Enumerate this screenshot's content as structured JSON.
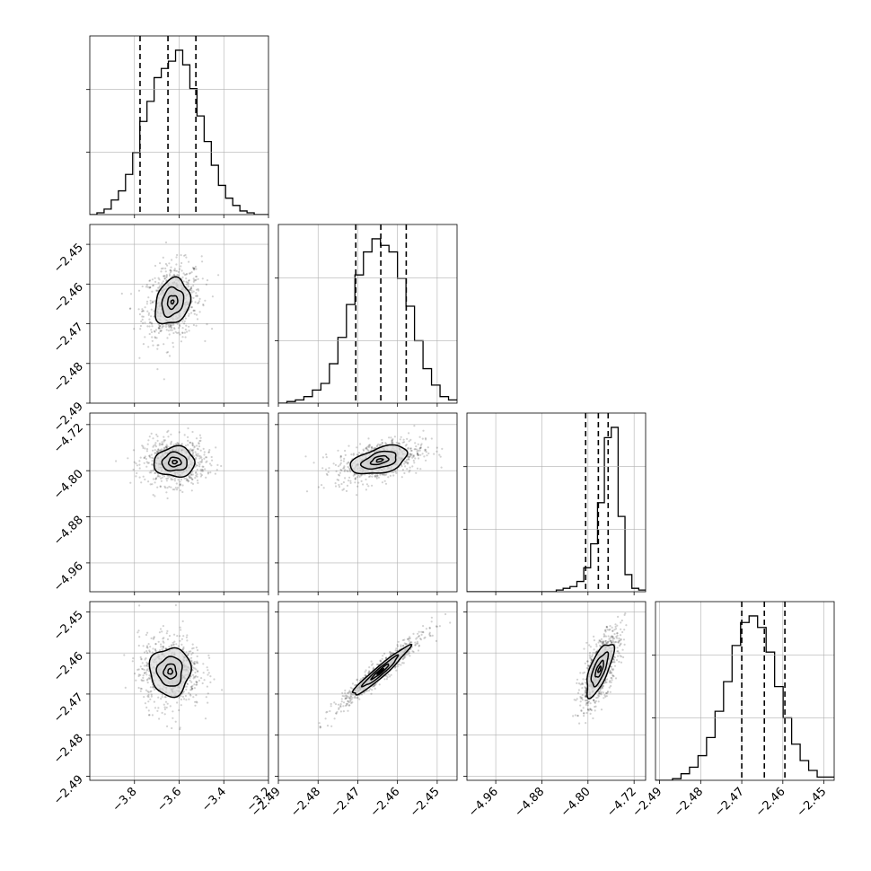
{
  "chart_data": {
    "type": "corner",
    "parameters": [
      "",
      "",
      "",
      ""
    ],
    "axes": [
      {
        "range": [
          -4.0,
          -3.2
        ],
        "ticks": [
          -3.8,
          -3.6,
          -3.4,
          -3.2
        ],
        "labels": [
          "−3.8",
          "−3.6",
          "−3.4",
          "−3.2"
        ]
      },
      {
        "range": [
          -2.49,
          -2.445
        ],
        "ticks": [
          -2.49,
          -2.48,
          -2.47,
          -2.46,
          -2.45
        ],
        "labels": [
          "−2.49",
          "−2.48",
          "−2.47",
          "−2.46",
          "−2.45"
        ]
      },
      {
        "range": [
          -5.01,
          -4.7
        ],
        "ticks": [
          -4.96,
          -4.88,
          -4.8,
          -4.72
        ],
        "labels": [
          "−4.96",
          "−4.88",
          "−4.80",
          "−4.72"
        ]
      },
      {
        "range": [
          -2.491,
          -2.4475
        ],
        "ticks": [
          -2.49,
          -2.48,
          -2.47,
          -2.46,
          -2.45
        ],
        "labels": [
          "−2.49",
          "−2.48",
          "−2.47",
          "−2.46",
          "−2.45"
        ]
      }
    ],
    "histograms": [
      {
        "edges_min": -4.0,
        "edges_max": -3.2,
        "counts": [
          0,
          1,
          3,
          8,
          13,
          22,
          34,
          51,
          62,
          75,
          80,
          84,
          90,
          82,
          69,
          54,
          40,
          27,
          16,
          9,
          5,
          2,
          1,
          0,
          0
        ],
        "quantiles": [
          -3.775,
          -3.65,
          -3.525
        ]
      },
      {
        "edges_min": -2.49,
        "edges_max": -2.445,
        "counts": [
          0,
          1,
          2,
          4,
          8,
          12,
          24,
          40,
          60,
          78,
          92,
          100,
          96,
          92,
          76,
          59,
          38,
          21,
          11,
          4,
          2
        ],
        "quantiles": [
          -2.4705,
          -2.4642,
          -2.4578
        ]
      },
      {
        "edges_min": -5.01,
        "edges_max": -4.7,
        "counts": [
          0,
          0,
          0,
          0,
          0,
          0,
          0,
          0,
          0,
          0,
          0,
          0,
          0,
          1,
          2,
          3,
          6,
          14,
          28,
          52,
          90,
          96,
          44,
          10,
          2,
          1
        ],
        "quantiles": [
          -4.804,
          -4.782,
          -4.765
        ]
      },
      {
        "edges_min": -2.491,
        "edges_max": -2.4475,
        "counts": [
          0,
          0,
          1,
          4,
          8,
          15,
          26,
          42,
          60,
          82,
          96,
          100,
          93,
          78,
          57,
          38,
          22,
          12,
          6,
          2,
          2
        ],
        "quantiles": [
          -2.47,
          -2.4645,
          -2.4595
        ]
      }
    ],
    "pairs": [
      {
        "x": 0,
        "y": 1,
        "mean": [
          -3.63,
          -2.4645
        ],
        "sd": [
          0.065,
          0.0048
        ],
        "rho": 0.2,
        "levels": [
          0.1,
          0.35,
          0.75,
          1.2
        ]
      },
      {
        "x": 0,
        "y": 2,
        "mean": [
          -3.62,
          -4.785
        ],
        "sd": [
          0.07,
          0.02
        ],
        "rho": 0.02,
        "levels": [
          0.15,
          0.4,
          0.8,
          1.3
        ]
      },
      {
        "x": 1,
        "y": 2,
        "mean": [
          -2.4645,
          -4.782
        ],
        "sd": [
          0.0055,
          0.019
        ],
        "rho": 0.45,
        "levels": [
          0.15,
          0.4,
          0.8,
          1.3
        ]
      },
      {
        "x": 0,
        "y": 3,
        "mean": [
          -3.64,
          -2.4645
        ],
        "sd": [
          0.07,
          0.0045
        ],
        "rho": 0.0,
        "levels": [
          0.15,
          0.4,
          0.8,
          1.3
        ]
      },
      {
        "x": 1,
        "y": 3,
        "mean": [
          -2.4643,
          -2.4645
        ],
        "sd": [
          0.0055,
          0.0046
        ],
        "rho": 0.96,
        "levels": [
          0.15,
          0.4,
          0.8,
          1.3
        ]
      },
      {
        "x": 2,
        "y": 3,
        "mean": [
          -4.78,
          -2.464
        ],
        "sd": [
          0.018,
          0.005
        ],
        "rho": 0.7,
        "levels": [
          0.15,
          0.4,
          0.8,
          1.3
        ]
      }
    ],
    "grid": true,
    "legend": "none"
  }
}
